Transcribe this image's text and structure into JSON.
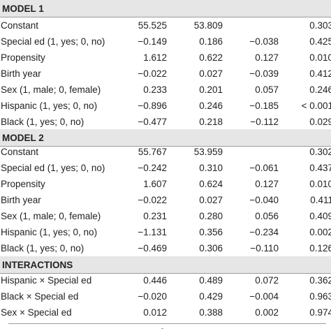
{
  "sections": [
    {
      "title": "MODEL 1",
      "rows": [
        {
          "label": "Constant",
          "v1": "55.525",
          "v2": "53.809",
          "v3": "",
          "p": "0.303"
        },
        {
          "label": "Special ed (1, yes; 0, no)",
          "v1": "−0.149",
          "v2": "0.186",
          "v3": "−0.038",
          "p": "0.425"
        },
        {
          "label": "Propensity",
          "v1": "1.612",
          "v2": "0.622",
          "v3": "0.127",
          "p": "0.010"
        },
        {
          "label": "Birth year",
          "v1": "−0.022",
          "v2": "0.027",
          "v3": "−0.039",
          "p": "0.412"
        },
        {
          "label": "Sex (1, male; 0, female)",
          "v1": "0.233",
          "v2": "0.201",
          "v3": "0.057",
          "p": "0.246"
        },
        {
          "label": "Hispanic (1, yes; 0, no)",
          "v1": "−0.896",
          "v2": "0.246",
          "v3": "−0.185",
          "p": "< 0.001"
        },
        {
          "label": "Black (1, yes; 0, no)",
          "v1": "−0.477",
          "v2": "0.218",
          "v3": "−0.112",
          "p": "0.029"
        }
      ]
    },
    {
      "title": "MODEL 2",
      "rows": [
        {
          "label": "Constant",
          "v1": "55.767",
          "v2": "53.959",
          "v3": "",
          "p": "0.302"
        },
        {
          "label": "Special ed (1, yes; 0, no)",
          "v1": "−0.242",
          "v2": "0.310",
          "v3": "−0.061",
          "p": "0.437"
        },
        {
          "label": "Propensity",
          "v1": "1.607",
          "v2": "0.624",
          "v3": "0.127",
          "p": "0.010"
        },
        {
          "label": "Birth year",
          "v1": "−0.022",
          "v2": "0.027",
          "v3": "−0.040",
          "p": "0.411"
        },
        {
          "label": "Sex (1, male; 0, female)",
          "v1": "0.231",
          "v2": "0.280",
          "v3": "0.056",
          "p": "0.409"
        },
        {
          "label": "Hispanic (1, yes; 0, no)",
          "v1": "−1.131",
          "v2": "0.356",
          "v3": "−0.234",
          "p": "0.002"
        },
        {
          "label": "Black (1, yes; 0, no)",
          "v1": "−0.469",
          "v2": "0.306",
          "v3": "−0.110",
          "p": "0.126"
        }
      ]
    },
    {
      "title": "INTERACTIONS",
      "rows": [
        {
          "label": "Hispanic × Special ed",
          "v1": "0.446",
          "v2": "0.489",
          "v3": "0.072",
          "p": "0.362"
        },
        {
          "label": "Black × Special ed",
          "v1": "−0.020",
          "v2": "0.429",
          "v3": "−0.004",
          "p": "0.963"
        },
        {
          "label": "Sex × Special ed",
          "v1": "0.012",
          "v2": "0.388",
          "v3": "0.002",
          "p": "0.974"
        }
      ]
    }
  ]
}
